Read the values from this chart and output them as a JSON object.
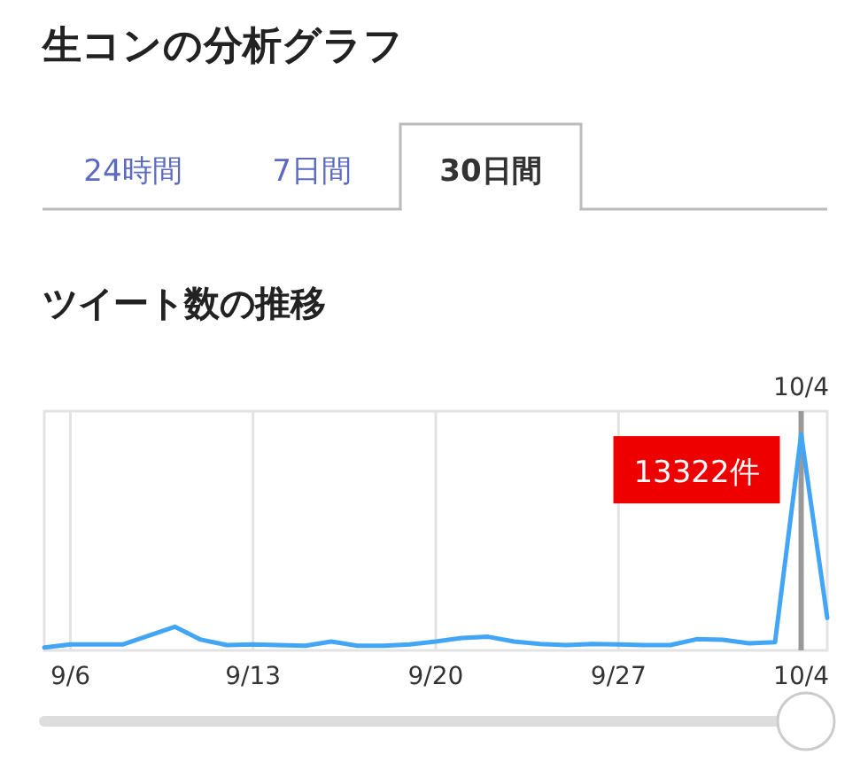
{
  "chart_data": {
    "type": "line",
    "title": "生コンの分析グラフ",
    "subtitle": "ツイート数の推移",
    "annotations": [
      "24時間",
      "7日間",
      "30日間"
    ],
    "x": [
      "--09-05",
      "--09-06",
      "--09-07",
      "--09-08",
      "--09-09",
      "--09-10",
      "--09-11",
      "--09-12",
      "--09-13",
      "--09-14",
      "--09-15",
      "--09-16",
      "--09-17",
      "--09-18",
      "--09-19",
      "--09-20",
      "--09-21",
      "--09-22",
      "--09-23",
      "--09-24",
      "--09-25",
      "--09-26",
      "--09-27",
      "--09-28",
      "--09-29",
      "--09-30",
      "--10-01",
      "--10-02",
      "--10-03",
      "--10-04",
      "--10-05"
    ],
    "series": [
      {
        "color": "#42a5f5",
        "values": [
          180,
          365,
          365,
          365,
          910,
          1460,
          660,
          330,
          365,
          330,
          290,
          550,
          290,
          290,
          365,
          550,
          770,
          840,
          550,
          400,
          330,
          400,
          365,
          330,
          330,
          690,
          660,
          440,
          510,
          13322,
          2000
        ],
        "value_labels": [
          null,
          null,
          null,
          null,
          null,
          null,
          null,
          null,
          null,
          null,
          null,
          null,
          null,
          null,
          null,
          null,
          null,
          null,
          null,
          null,
          null,
          null,
          null,
          null,
          null,
          null,
          null,
          null,
          null,
          "13322件",
          null
        ]
      }
    ],
    "xlim": [
      "--09-05",
      "--10-05"
    ],
    "ylim": [
      0,
      14750
    ],
    "xticks": [
      {
        "value": "--09-06",
        "label": "9/6"
      },
      {
        "value": "--09-13",
        "label": "9/13"
      },
      {
        "value": "--09-20",
        "label": "9/20"
      },
      {
        "value": "--09-27",
        "label": "9/27"
      },
      {
        "value": "--10-04",
        "label": "10/4"
      }
    ],
    "grid": "x",
    "ref_lines": [
      {
        "axis": "x",
        "value": "--10-04",
        "label": "10/4",
        "color": "#999999"
      }
    ],
    "tick_labels": "x"
  }
}
